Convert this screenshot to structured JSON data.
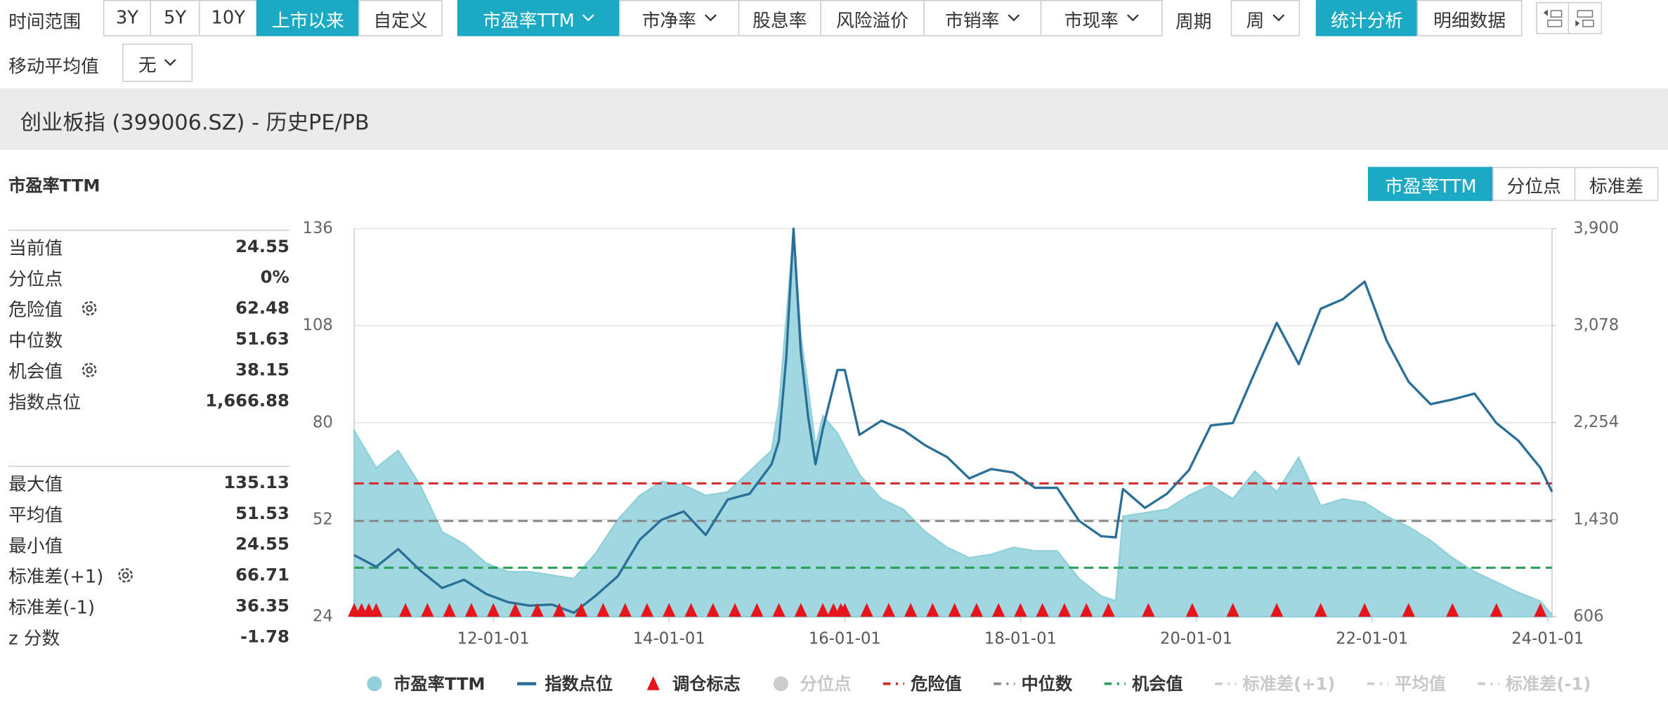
{
  "toolbar": {
    "time_label": "时间范围",
    "ranges": [
      "3Y",
      "5Y",
      "10Y",
      "上市以来",
      "自定义"
    ],
    "metrics": [
      "市盈率TTM",
      "市净率",
      "股息率",
      "风险溢价",
      "市销率",
      "市现率"
    ],
    "period_label": "周期",
    "period": "周",
    "views": [
      "统计分析",
      "明细数据"
    ],
    "ma_label": "移动平均值",
    "ma": "无"
  },
  "header": {
    "title": "创业板指 (399006.SZ) - 历史PE/PB"
  },
  "panel": {
    "title": "市盈率TTM",
    "tabs": [
      "市盈率TTM",
      "分位点",
      "标准差"
    ],
    "stats": [
      {
        "label": "当前值",
        "value": "24.55"
      },
      {
        "label": "分位点",
        "value": "0%"
      },
      {
        "label": "危险值",
        "value": "62.48"
      },
      {
        "label": "中位数",
        "value": "51.63"
      },
      {
        "label": "机会值",
        "value": "38.15"
      },
      {
        "label": "指数点位",
        "value": "1,666.88"
      }
    ],
    "stats2": [
      {
        "label": "最大值",
        "value": "135.13"
      },
      {
        "label": "平均值",
        "value": "51.53"
      },
      {
        "label": "最小值",
        "value": "24.55"
      },
      {
        "label": "标准差(+1)",
        "value": "66.71"
      },
      {
        "label": "标准差(-1)",
        "value": "36.35"
      },
      {
        "label": "z 分数",
        "value": "-1.78"
      }
    ]
  },
  "chart_data": {
    "type": "line",
    "x": [
      "10-06-01",
      "10-09-01",
      "10-12-01",
      "11-03-01",
      "11-06-01",
      "11-09-01",
      "11-12-01",
      "12-03-01",
      "12-06-01",
      "12-09-01",
      "12-12-01",
      "13-03-01",
      "13-06-01",
      "13-09-01",
      "13-12-01",
      "14-03-01",
      "14-06-01",
      "14-09-01",
      "14-12-01",
      "15-03-01",
      "15-04-01",
      "15-05-01",
      "15-06-01",
      "15-07-01",
      "15-08-01",
      "15-09-01",
      "15-10-01",
      "15-12-01",
      "16-01-01",
      "16-03-01",
      "16-06-01",
      "16-09-01",
      "16-12-01",
      "17-03-01",
      "17-06-01",
      "17-09-01",
      "17-12-01",
      "18-03-01",
      "18-06-01",
      "18-09-01",
      "18-12-01",
      "19-02-01",
      "19-03-01",
      "19-06-01",
      "19-09-01",
      "19-12-01",
      "20-03-01",
      "20-06-01",
      "20-09-01",
      "20-12-01",
      "21-03-01",
      "21-06-01",
      "21-09-01",
      "21-12-01",
      "22-03-01",
      "22-06-01",
      "22-09-01",
      "22-12-01",
      "23-03-01",
      "23-06-01",
      "23-09-01",
      "23-12-01",
      "24-01-19"
    ],
    "series": [
      {
        "name": "市盈率TTM",
        "style": "area",
        "color": "#8fd0da",
        "values": [
          77.7,
          67,
          72,
          62,
          48.5,
          45,
          39.5,
          37,
          37,
          36,
          35,
          42.4,
          52,
          59,
          63,
          62,
          59,
          60,
          66,
          72,
          85,
          110,
          135.13,
          105,
          90,
          73,
          82,
          77,
          73,
          65,
          58,
          55,
          48.5,
          44,
          41,
          42,
          44,
          43,
          43,
          35,
          30,
          28.6,
          53,
          54,
          55,
          59,
          62,
          58,
          66,
          60,
          70,
          56,
          58,
          57,
          53,
          50,
          46,
          41,
          37,
          34,
          31,
          28.5,
          24.55
        ]
      },
      {
        "name": "指数点位",
        "style": "line",
        "axis": "y2",
        "color": "#2a6f97",
        "values": [
          1129,
          1030,
          1180,
          1000,
          850,
          920,
          800,
          730,
          700,
          710,
          640,
          786,
          950,
          1260,
          1430,
          1500,
          1300,
          1600,
          1650,
          1900,
          2100,
          2800,
          3899,
          2850,
          2300,
          1900,
          2200,
          2700,
          2700,
          2150,
          2270,
          2190,
          2060,
          1960,
          1780,
          1860,
          1830,
          1700,
          1700,
          1420,
          1290,
          1280,
          1690,
          1530,
          1650,
          1850,
          2230,
          2250,
          2680,
          3100,
          2750,
          3220,
          3300,
          3450,
          2950,
          2600,
          2410,
          2450,
          2500,
          2250,
          2100,
          1870,
          1666.88
        ]
      }
    ],
    "markers": {
      "name": "调仓标志",
      "color": "#e8141b",
      "x": [
        "10-06-01",
        "10-07-01",
        "10-08-01",
        "10-09-01",
        "11-01-01",
        "11-04-01",
        "11-07-01",
        "11-10-01",
        "12-01-01",
        "12-04-01",
        "12-07-01",
        "12-10-01",
        "13-01-01",
        "13-04-01",
        "13-07-01",
        "13-10-01",
        "14-01-01",
        "14-04-01",
        "14-07-01",
        "14-10-01",
        "15-01-01",
        "15-04-01",
        "15-07-01",
        "15-10-01",
        "15-11-15",
        "15-12-15",
        "16-01-01",
        "16-04-01",
        "16-07-01",
        "16-10-01",
        "17-01-01",
        "17-04-01",
        "17-07-01",
        "17-10-01",
        "18-01-01",
        "18-04-01",
        "18-07-01",
        "18-10-01",
        "19-01-01",
        "19-06-15",
        "19-12-15",
        "20-06-01",
        "20-12-01",
        "21-06-01",
        "21-12-01",
        "22-06-01",
        "22-12-01",
        "23-06-01",
        "23-12-01"
      ]
    },
    "reference_lines": [
      {
        "name": "危险值",
        "value": 62.48,
        "color": "#d62728"
      },
      {
        "name": "中位数",
        "value": 51.63,
        "color": "#888888"
      },
      {
        "name": "机会值",
        "value": 38.15,
        "color": "#2ca05a"
      }
    ],
    "inactive_legend": [
      {
        "name": "分位点",
        "icon": "circle"
      },
      {
        "name": "标准差(+1)",
        "icon": "dash"
      },
      {
        "name": "平均值",
        "icon": "dash"
      },
      {
        "name": "标准差(-1)",
        "icon": "dash"
      }
    ],
    "xlim": [
      "10-06-01",
      "24-01-19"
    ],
    "xticks": [
      "12-01-01",
      "14-01-01",
      "16-01-01",
      "18-01-01",
      "20-01-01",
      "22-01-01",
      "24-01-01"
    ],
    "ylim": [
      24,
      136
    ],
    "yticks": [
      24,
      52,
      80,
      108,
      136
    ],
    "y2lim": [
      606,
      3900
    ],
    "y2ticks": [
      606,
      {
        "value": 1430,
        "label": "1,430"
      },
      {
        "value": 2254,
        "label": "2,254"
      },
      {
        "value": 3078,
        "label": "3,078"
      },
      {
        "value": 3900,
        "label": "3,900"
      }
    ],
    "grid": true
  }
}
